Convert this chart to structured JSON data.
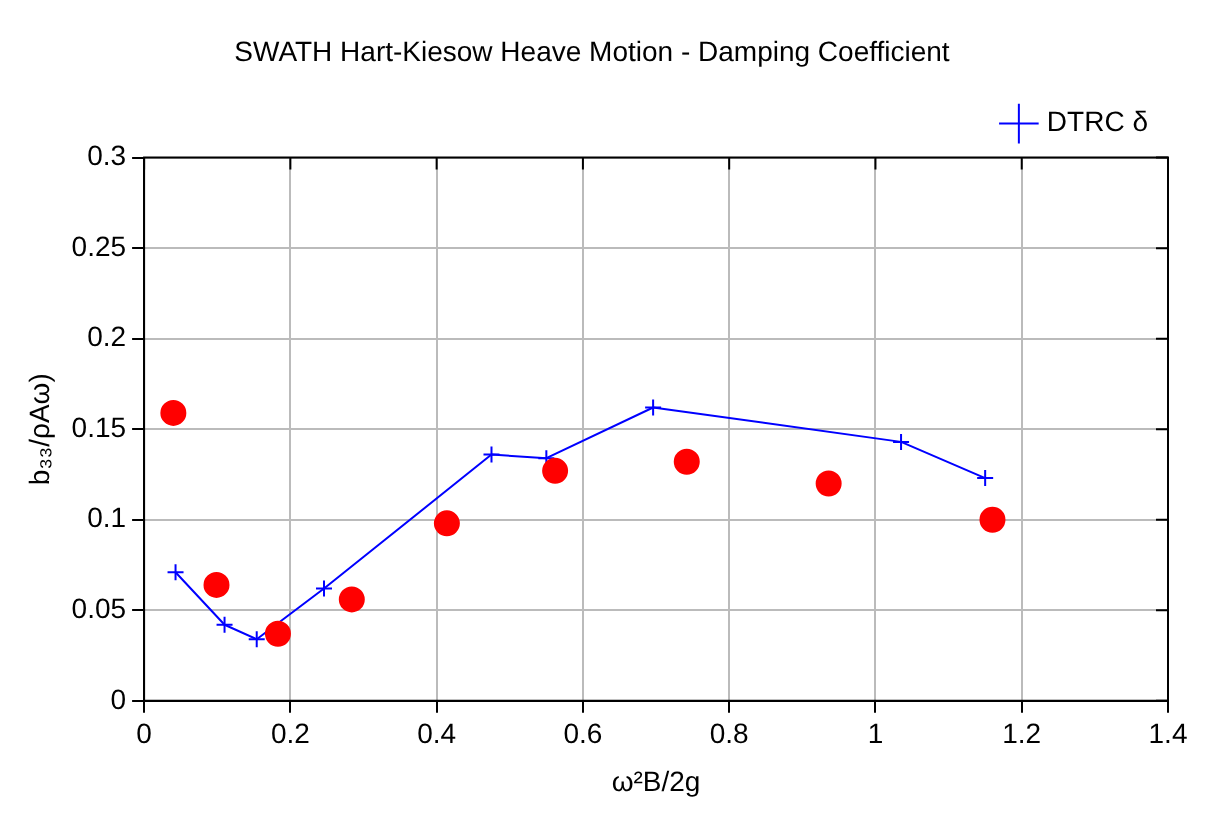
{
  "chart_data": {
    "type": "scatter",
    "title": "SWATH Hart-Kiesow Heave Motion - Damping Coefficient",
    "xlabel": "ω²B/2g",
    "ylabel": "b₃₃/ρAω)",
    "series": [
      {
        "color": "#ff0000",
        "marker": "circle",
        "x": [
          0.04,
          0.099,
          0.183,
          0.284,
          0.414,
          0.562,
          0.742,
          0.936,
          1.16
        ],
        "values": [
          0.159,
          0.064,
          0.037,
          0.056,
          0.098,
          0.127,
          0.132,
          0.12,
          0.1
        ]
      },
      {
        "type": "line",
        "name": "DTRC δ",
        "color": "#0000ff",
        "marker": "cross",
        "x": [
          0.043,
          0.11,
          0.154,
          0.246,
          0.475,
          0.55,
          0.696,
          1.035,
          1.15
        ],
        "values": [
          0.071,
          0.042,
          0.034,
          0.062,
          0.136,
          0.134,
          0.162,
          0.143,
          0.123
        ]
      }
    ],
    "xlim": [
      0,
      1.4
    ],
    "xticks": [
      0,
      0.2,
      0.4,
      0.6,
      0.8,
      1,
      1.2,
      1.4
    ],
    "ylim": [
      0,
      0.3
    ],
    "yticks": [
      0,
      0.05,
      0.1,
      0.15,
      0.2,
      0.25,
      0.3
    ],
    "grid": true,
    "legend": "top right"
  }
}
